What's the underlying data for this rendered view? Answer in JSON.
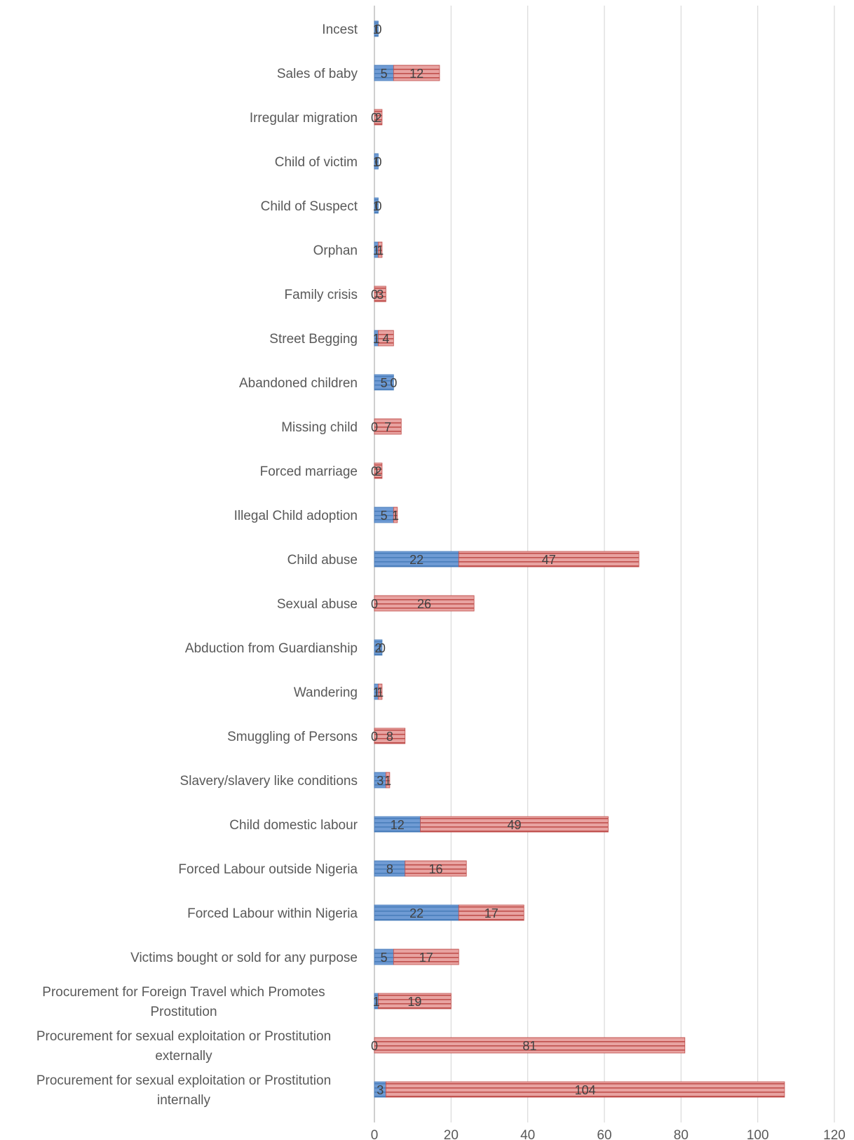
{
  "chart_data": {
    "type": "bar",
    "orientation": "horizontal",
    "stacked": true,
    "categories": [
      "Incest",
      "Sales of baby",
      "Irregular migration",
      "Child of victim",
      "Child of Suspect",
      "Orphan",
      "Family crisis",
      "Street Begging",
      "Abandoned  children",
      "Missing child",
      "Forced marriage",
      "Illegal Child adoption",
      "Child abuse",
      "Sexual abuse",
      "Abduction from Guardianship",
      "Wandering",
      "Smuggling of Persons",
      "Slavery/slavery like conditions",
      "Child domestic labour",
      "Forced Labour outside Nigeria",
      "Forced Labour within Nigeria",
      "Victims bought or sold for any purpose",
      "Procurement for Foreign Travel which Promotes Prostitution",
      "Procurement for sexual exploitation or Prostitution externally",
      "Procurement for sexual exploitation or Prostitution internally"
    ],
    "series": [
      {
        "color": "#4a7ebb",
        "values": [
          1,
          5,
          0,
          1,
          1,
          1,
          0,
          1,
          5,
          0,
          0,
          5,
          22,
          0,
          2,
          1,
          0,
          3,
          12,
          8,
          22,
          5,
          1,
          0,
          3
        ]
      },
      {
        "color": "#c0504d",
        "values": [
          0,
          12,
          2,
          0,
          0,
          1,
          3,
          4,
          0,
          7,
          2,
          1,
          47,
          26,
          0,
          1,
          8,
          1,
          49,
          16,
          17,
          17,
          19,
          81,
          104
        ]
      }
    ],
    "xlim": [
      0,
      120
    ],
    "xticks": [
      0,
      20,
      40,
      60,
      80,
      100,
      120
    ],
    "grid": true,
    "legend": "none"
  }
}
